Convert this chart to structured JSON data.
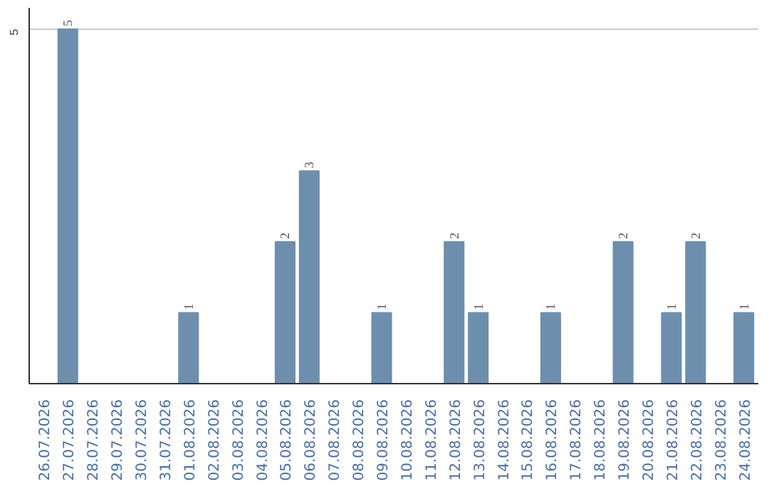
{
  "chart_data": {
    "type": "bar",
    "categories": [
      "26.07.2026",
      "27.07.2026",
      "28.07.2026",
      "29.07.2026",
      "30.07.2026",
      "31.07.2026",
      "01.08.2026",
      "02.08.2026",
      "03.08.2026",
      "04.08.2026",
      "05.08.2026",
      "06.08.2026",
      "07.08.2026",
      "08.08.2026",
      "09.08.2026",
      "10.08.2026",
      "11.08.2026",
      "12.08.2026",
      "13.08.2026",
      "14.08.2026",
      "15.08.2026",
      "16.08.2026",
      "17.08.2026",
      "18.08.2026",
      "19.08.2026",
      "20.08.2026",
      "21.08.2026",
      "22.08.2026",
      "23.08.2026",
      "24.08.2026"
    ],
    "values": [
      0,
      5,
      0,
      0,
      0,
      0,
      1,
      0,
      0,
      0,
      2,
      3,
      0,
      0,
      1,
      0,
      0,
      2,
      1,
      0,
      0,
      1,
      0,
      0,
      2,
      0,
      1,
      2,
      0,
      1
    ],
    "color": "#6d8fad",
    "value_labels": [
      null,
      "5",
      null,
      null,
      null,
      null,
      "1",
      null,
      null,
      null,
      "2",
      "3",
      null,
      null,
      "1",
      null,
      null,
      "2",
      "1",
      null,
      null,
      "1",
      null,
      null,
      "2",
      null,
      "1",
      "2",
      null,
      "1"
    ],
    "ylim": [
      0,
      5.3
    ],
    "yticks": [
      5
    ],
    "grid": "y"
  }
}
